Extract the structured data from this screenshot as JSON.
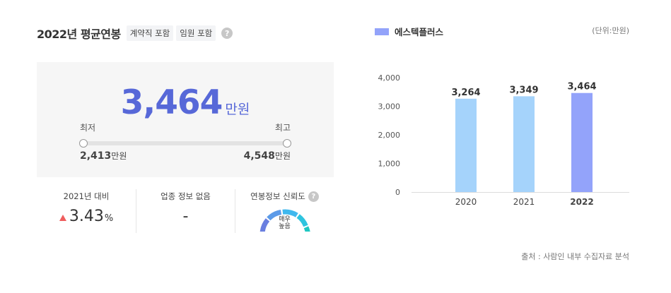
{
  "header": {
    "title": "2022년 평균연봉",
    "tags": [
      "계약직 포함",
      "임원 포함"
    ],
    "help": "?"
  },
  "salary": {
    "value": "3,464",
    "unit": "만원",
    "min_label": "최저",
    "max_label": "최고",
    "min_value": "2,413",
    "max_value": "4,548",
    "value_unit": "만원"
  },
  "stats": {
    "growth_label": "2021년 대비",
    "growth_value": "3.43",
    "growth_pct": "%",
    "industry_label": "업종 정보 없음",
    "industry_value": "-",
    "reliability_label": "연봉정보 신뢰도",
    "reliability_help": "?",
    "reliability_line1": "매우",
    "reliability_line2": "높음"
  },
  "chart_legend": "에스텍플러스",
  "chart_unit": "(단위:만원)",
  "source": "출처 : 사람인 내부 수집자료 분석",
  "colors": {
    "accent": "#5768d8",
    "bar_past": "#a5d3fb",
    "bar_current": "#93a3fa",
    "growth_up": "#ef5d5d"
  },
  "chart_data": {
    "type": "bar",
    "categories": [
      "2020",
      "2021",
      "2022"
    ],
    "values": [
      3264,
      3349,
      3464
    ],
    "value_labels": [
      "3,264",
      "3,349",
      "3,464"
    ],
    "highlight_index": 2,
    "yticks": [
      "4,000",
      "3,000",
      "2,000",
      "1,000",
      "0"
    ],
    "ylim": [
      0,
      4000
    ],
    "xlabel": "",
    "ylabel": "",
    "grid": false
  }
}
